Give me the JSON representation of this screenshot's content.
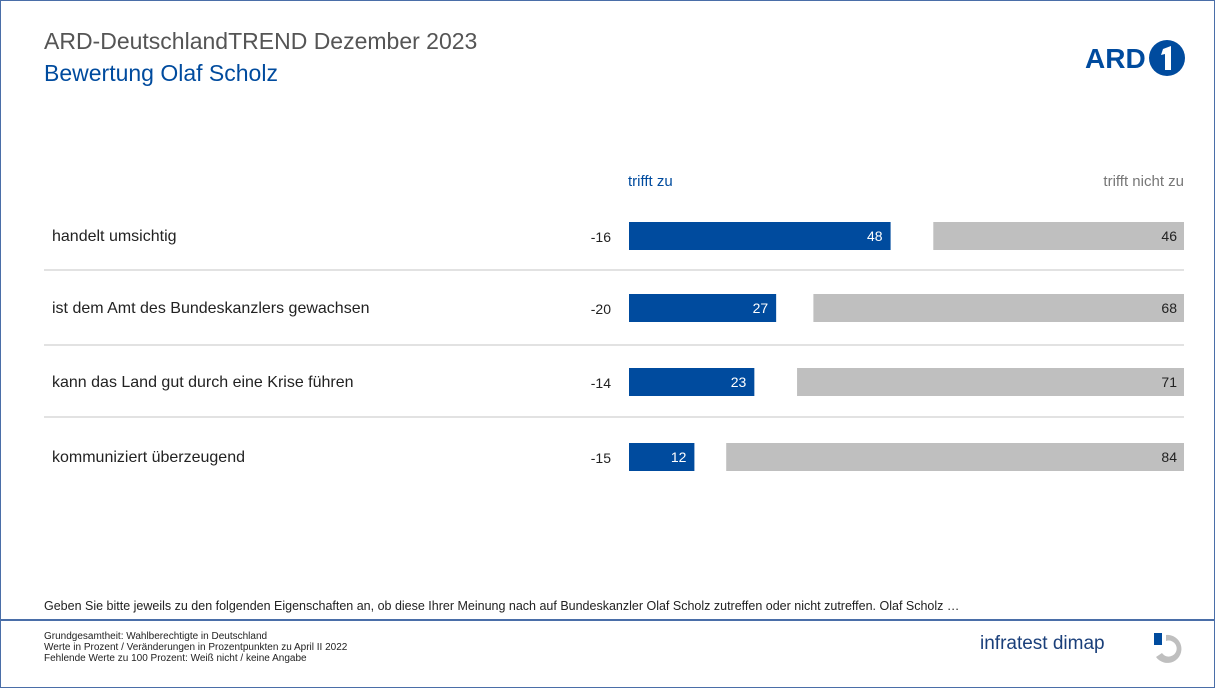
{
  "header": {
    "title": "ARD-DeutschlandTREND Dezember 2023",
    "subtitle": "Bewertung Olaf Scholz",
    "brand_logo": "ARD"
  },
  "legend": {
    "agree": "trifft zu",
    "disagree": "trifft nicht zu"
  },
  "chart_data": {
    "type": "bar",
    "orientation": "horizontal",
    "stacked": true,
    "categories": [
      "handelt umsichtig",
      "ist dem Amt des Bundeskanzlers gewachsen",
      "kann das Land gut durch eine Krise führen",
      "kommuniziert überzeugend"
    ],
    "changes": [
      "-16",
      "-20",
      "-14",
      "-15"
    ],
    "series": [
      {
        "name": "trifft zu",
        "values": [
          48,
          27,
          23,
          12
        ],
        "color": "#004b9e"
      },
      {
        "name": "trifft nicht zu",
        "values": [
          46,
          68,
          71,
          84
        ],
        "color": "#bfbfbf"
      }
    ],
    "xlim": [
      0,
      100
    ]
  },
  "question": "Geben Sie bitte jeweils zu den folgenden Eigenschaften an, ob diese Ihrer Meinung nach auf Bundeskanzler Olaf Scholz zutreffen oder nicht zutreffen. Olaf Scholz …",
  "footer": {
    "notes": [
      "Grundgesamtheit: Wahlberechtigte in Deutschland",
      "Werte in Prozent / Veränderungen in Prozentpunkten zu April II 2022",
      "Fehlende Werte zu 100 Prozent: Weiß nicht / keine Angabe"
    ],
    "institute_logo": "infratest dimap"
  }
}
